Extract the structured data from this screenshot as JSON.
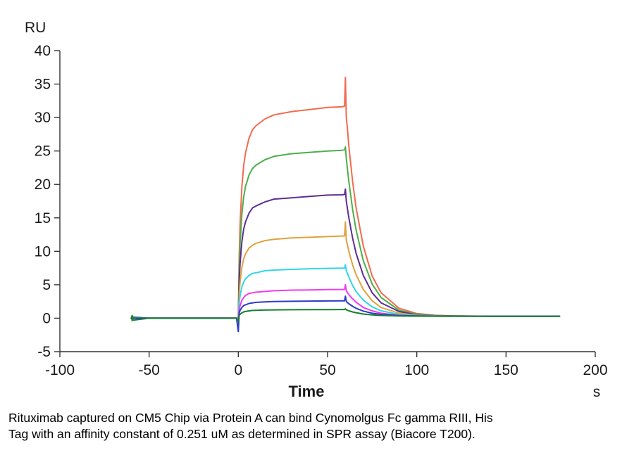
{
  "caption": {
    "line1": "Rituximab captured on CM5 Chip via Protein A can bind Cynomolgus Fc gamma RIII, His",
    "line2": "Tag with an affinity constant of 0.251 uM as determined in SPR assay (Biacore T200)."
  },
  "chart_data": {
    "type": "line",
    "title": "",
    "xlabel": "Time",
    "x_unit": "s",
    "ylabel": "RU",
    "xlim": [
      -100,
      200
    ],
    "ylim": [
      -5,
      40
    ],
    "x_ticks": [
      -100,
      -50,
      0,
      50,
      100,
      150,
      200
    ],
    "y_ticks": [
      -5,
      0,
      5,
      10,
      15,
      20,
      25,
      30,
      35,
      40
    ],
    "grid": false,
    "legend": "none",
    "axis_color": "#333333",
    "text_color": "#1a1a1a",
    "x": [
      -60,
      -59.5,
      -59,
      -50,
      -40,
      -30,
      -20,
      -10,
      -2,
      -1,
      0,
      0.5,
      1,
      2,
      3,
      4,
      6,
      8,
      10,
      15,
      20,
      30,
      40,
      50,
      58,
      59.5,
      60,
      60.5,
      61,
      62,
      64,
      66,
      70,
      75,
      80,
      90,
      100,
      110,
      120,
      140,
      160,
      180
    ],
    "series": [
      {
        "name": "red",
        "color": "#f26b4e",
        "values": [
          0,
          0,
          0,
          0,
          0,
          0,
          0,
          0,
          0,
          0,
          0,
          9.5,
          14.3,
          19.7,
          22.8,
          24.7,
          26.9,
          28.2,
          28.8,
          29.8,
          30.4,
          30.9,
          31.2,
          31.5,
          31.6,
          31.7,
          36.0,
          30.0,
          28.7,
          25.5,
          20.5,
          16.5,
          10.8,
          6.3,
          3.8,
          1.5,
          0.7,
          0.45,
          0.35,
          0.3,
          0.3,
          0.3
        ]
      },
      {
        "name": "green",
        "color": "#4daf4a",
        "values": [
          0,
          -0.4,
          0.2,
          0,
          0,
          0,
          0,
          0,
          0,
          0,
          0,
          7.6,
          11.3,
          15.6,
          18.1,
          19.7,
          21.4,
          22.4,
          22.9,
          23.7,
          24.2,
          24.6,
          24.8,
          25.0,
          25.1,
          25.2,
          25.6,
          23.9,
          22.6,
          20.3,
          16.3,
          13.2,
          8.6,
          5.1,
          3.1,
          1.2,
          0.6,
          0.4,
          0.33,
          0.3,
          0.3,
          0.3
        ]
      },
      {
        "name": "purple",
        "color": "#5e2d91",
        "values": [
          0,
          0,
          0,
          0,
          0,
          0,
          0,
          0,
          0,
          0,
          0,
          5.6,
          8.3,
          11.5,
          13.3,
          14.4,
          15.7,
          16.5,
          16.8,
          17.4,
          17.8,
          18.0,
          18.2,
          18.4,
          18.45,
          18.5,
          19.3,
          17.5,
          16.6,
          14.9,
          12.0,
          9.7,
          6.4,
          3.8,
          2.3,
          1.0,
          0.5,
          0.37,
          0.32,
          0.3,
          0.3,
          0.3
        ]
      },
      {
        "name": "orange",
        "color": "#e0a23e",
        "values": [
          0,
          0,
          0,
          0,
          0,
          0,
          0,
          0,
          0,
          0,
          0,
          3.7,
          5.5,
          7.6,
          8.9,
          9.6,
          10.5,
          10.9,
          11.2,
          11.6,
          11.8,
          12.0,
          12.1,
          12.2,
          12.28,
          12.3,
          14.4,
          11.7,
          11.1,
          9.9,
          8.0,
          6.5,
          4.3,
          2.6,
          1.6,
          0.75,
          0.45,
          0.35,
          0.32,
          0.3,
          0.3,
          0.3
        ]
      },
      {
        "name": "cyan",
        "color": "#30d5e8",
        "values": [
          0,
          0,
          0,
          0,
          0,
          0,
          0,
          0,
          0,
          0,
          0,
          2.3,
          3.4,
          4.7,
          5.4,
          5.9,
          6.4,
          6.7,
          6.8,
          7.1,
          7.2,
          7.3,
          7.4,
          7.45,
          7.48,
          7.5,
          8.0,
          7.1,
          6.8,
          6.1,
          4.9,
          4.0,
          2.7,
          1.7,
          1.1,
          0.57,
          0.39,
          0.33,
          0.31,
          0.3,
          0.3,
          0.3
        ]
      },
      {
        "name": "magenta",
        "color": "#ee3cee",
        "values": [
          0,
          0,
          0,
          0,
          0,
          0,
          0,
          0,
          0,
          0,
          0,
          1.3,
          1.9,
          2.7,
          3.1,
          3.4,
          3.7,
          3.8,
          3.9,
          4.0,
          4.1,
          4.2,
          4.23,
          4.27,
          4.29,
          4.3,
          5.0,
          4.1,
          3.9,
          3.5,
          2.9,
          2.4,
          1.6,
          1.1,
          0.74,
          0.45,
          0.35,
          0.32,
          0.31,
          0.3,
          0.3,
          0.3
        ]
      },
      {
        "name": "blue",
        "color": "#2b3bc8",
        "values": [
          0,
          0,
          0,
          0,
          0,
          0,
          0,
          0,
          0,
          0,
          -2.0,
          0.8,
          1.2,
          1.6,
          1.9,
          2.0,
          2.2,
          2.3,
          2.37,
          2.44,
          2.5,
          2.53,
          2.56,
          2.58,
          2.59,
          2.6,
          3.3,
          2.5,
          2.36,
          2.15,
          1.78,
          1.49,
          1.07,
          0.74,
          0.56,
          0.38,
          0.33,
          0.31,
          0.3,
          0.3,
          0.3,
          0.3
        ]
      },
      {
        "name": "dark-green",
        "color": "#157f2f",
        "values": [
          0,
          0.4,
          -0.3,
          0,
          0,
          0,
          0,
          0,
          0,
          0,
          -0.5,
          0.4,
          0.6,
          0.8,
          0.94,
          1.0,
          1.1,
          1.16,
          1.18,
          1.22,
          1.25,
          1.27,
          1.28,
          1.29,
          1.3,
          1.3,
          1.4,
          1.25,
          1.2,
          1.1,
          0.94,
          0.82,
          0.63,
          0.49,
          0.41,
          0.34,
          0.31,
          0.3,
          0.3,
          0.3,
          0.3,
          0.3
        ]
      }
    ]
  }
}
